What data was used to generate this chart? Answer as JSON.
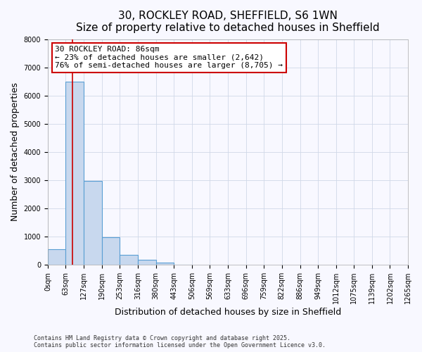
{
  "title_line1": "30, ROCKLEY ROAD, SHEFFIELD, S6 1WN",
  "title_line2": "Size of property relative to detached houses in Sheffield",
  "xlabel": "Distribution of detached houses by size in Sheffield",
  "ylabel": "Number of detached properties",
  "bar_values": [
    550,
    6480,
    2980,
    980,
    360,
    170,
    70,
    10,
    0,
    0,
    0,
    0,
    0,
    0,
    0,
    0,
    0,
    0,
    0,
    0
  ],
  "bin_edges": [
    0,
    63,
    127,
    190,
    253,
    316,
    380,
    443,
    506,
    569,
    633,
    696,
    759,
    822,
    886,
    949,
    1012,
    1075,
    1139,
    1202,
    1265
  ],
  "bar_color": "#c8d8ee",
  "bar_edge_color": "#5a9fd4",
  "property_size": 86,
  "property_line_color": "#cc0000",
  "annotation_line1": "30 ROCKLEY ROAD: 86sqm",
  "annotation_line2": "← 23% of detached houses are smaller (2,642)",
  "annotation_line3": "76% of semi-detached houses are larger (8,705) →",
  "annotation_box_facecolor": "#ffffff",
  "annotation_border_color": "#cc0000",
  "ylim": [
    0,
    8000
  ],
  "yticks": [
    0,
    1000,
    2000,
    3000,
    4000,
    5000,
    6000,
    7000,
    8000
  ],
  "footnote_line1": "Contains HM Land Registry data © Crown copyright and database right 2025.",
  "footnote_line2": "Contains public sector information licensed under the Open Government Licence v3.0.",
  "bg_color": "#f8f8ff",
  "grid_color": "#d0d8e8",
  "title_fontsize": 11,
  "subtitle_fontsize": 10,
  "axis_label_fontsize": 9,
  "tick_fontsize": 7,
  "annotation_fontsize": 8,
  "footnote_fontsize": 6
}
